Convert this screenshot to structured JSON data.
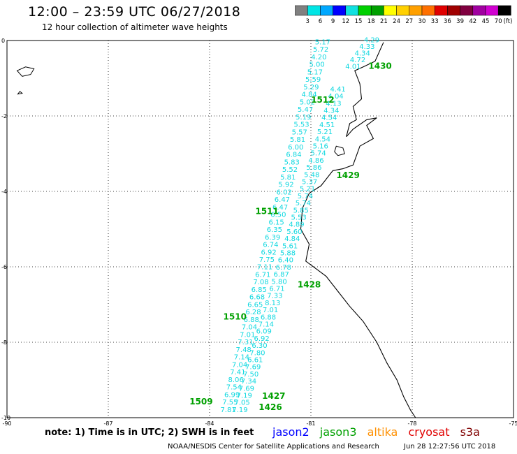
{
  "header": {
    "title": "12:00 – 23:59 UTC 06/27/2018",
    "subtitle": "12 hour collection of altimeter wave heights"
  },
  "colorbar": {
    "labels": [
      "3",
      "6",
      "9",
      "12",
      "15",
      "18",
      "21",
      "24",
      "27",
      "30",
      "33",
      "36",
      "39",
      "42",
      "45",
      "70"
    ],
    "unit": "(ft)",
    "colors": [
      "#808080",
      "#00e5e5",
      "#00a8ff",
      "#0000ff",
      "#10e0e0",
      "#00d000",
      "#00a000",
      "#ffff00",
      "#ffd000",
      "#ffa000",
      "#ff7000",
      "#e00000",
      "#a00000",
      "#800040",
      "#a000a0",
      "#d000d0",
      "#000000"
    ]
  },
  "chart_data": {
    "type": "scatter",
    "xlim": [
      -90,
      -75
    ],
    "ylim": [
      -10,
      0
    ],
    "x_ticks": [
      "-90",
      "-87",
      "-84",
      "-81",
      "-78",
      "-75"
    ],
    "y_ticks": [
      "0",
      "-2",
      "-4",
      "-6",
      "-8",
      "-10"
    ],
    "track_a": {
      "lon_start": -83.45,
      "lon_end": -80.65,
      "lat_start": -9.85,
      "lat_end": -0.1,
      "values": [
        "7.81",
        "7.55",
        "6.99",
        "7.54",
        "8.06",
        "7.41",
        "7.04",
        "7.14",
        "7.48",
        "7.31",
        "7.01",
        "7.04",
        "6.88",
        "6.28",
        "6.65",
        "6.68",
        "6.85",
        "7.08",
        "6.71",
        "7.11",
        "7.75",
        "6.92",
        "6.74",
        "6.39",
        "6.35",
        "6.15",
        "6.50",
        "6.47",
        "6.47",
        "6.02",
        "5.92",
        "5.81",
        "5.52",
        "5.83",
        "6.84",
        "6.00",
        "5.81",
        "5.57",
        "5.53",
        "5.19",
        "5.47",
        "5.02",
        "4.84",
        "5.29",
        "5.59",
        "5.17",
        "5.00",
        "4.20",
        "5.72",
        "5.17"
      ]
    },
    "track_b": {
      "lon_start": -83.1,
      "lon_end": -80.2,
      "lat_start": -9.85,
      "lat_end": -1.35,
      "values": [
        "7.19",
        "7.05",
        "7.19",
        "7.69",
        "7.34",
        "7.50",
        "7.69",
        "6.61",
        "7.80",
        "6.30",
        "6.92",
        "6.09",
        "7.14",
        "6.88",
        "7.01",
        "8.13",
        "7.33",
        "6.71",
        "5.80",
        "6.87",
        "6.78",
        "6.40",
        "5.88",
        "5.61",
        "4.84",
        "5.60",
        "4.89",
        "5.53",
        "5.85",
        "5.74",
        "5.74",
        "5.21",
        "5.37",
        "5.48",
        "5.86",
        "4.86",
        "5.74",
        "5.16",
        "4.54",
        "5.21",
        "4.51",
        "4.54",
        "4.34",
        "4.13",
        "4.04",
        "4.41"
      ]
    },
    "track_c": {
      "lon_start": -79.75,
      "lon_end": -79.2,
      "lat_start": -0.75,
      "lat_end": -0.05,
      "values": [
        "4.01",
        "4.72",
        "4.34",
        "4.33",
        "4.29"
      ]
    },
    "time_labels": [
      {
        "text": "1430",
        "lon": -78.95,
        "lat": -0.75,
        "series": "jason3"
      },
      {
        "text": "1512",
        "lon": -80.65,
        "lat": -1.65,
        "series": "jason3"
      },
      {
        "text": "1429",
        "lon": -79.9,
        "lat": -3.65,
        "series": "jason3"
      },
      {
        "text": "1511",
        "lon": -82.3,
        "lat": -4.6,
        "series": "jason3"
      },
      {
        "text": "1428",
        "lon": -81.05,
        "lat": -6.55,
        "series": "jason3"
      },
      {
        "text": "1510",
        "lon": -83.25,
        "lat": -7.4,
        "series": "jason3"
      },
      {
        "text": "1427",
        "lon": -82.1,
        "lat": -9.5,
        "series": "jason3"
      },
      {
        "text": "1509",
        "lon": -84.25,
        "lat": -9.65,
        "series": "jason3"
      },
      {
        "text": "1426",
        "lon": -82.2,
        "lat": -9.8,
        "series": "jason3"
      }
    ],
    "coast": [
      [
        -78.85,
        -0.05
      ],
      [
        -79.1,
        -0.55
      ],
      [
        -79.45,
        -0.7
      ],
      [
        -79.7,
        -0.8
      ],
      [
        -79.55,
        -1.15
      ],
      [
        -79.5,
        -1.55
      ],
      [
        -79.75,
        -1.75
      ],
      [
        -79.65,
        -2.1
      ],
      [
        -79.85,
        -2.2
      ],
      [
        -79.95,
        -2.55
      ],
      [
        -79.75,
        -2.35
      ],
      [
        -79.35,
        -2.1
      ],
      [
        -79.05,
        -2.05
      ],
      [
        -79.35,
        -2.25
      ],
      [
        -79.15,
        -2.6
      ],
      [
        -79.55,
        -2.8
      ],
      [
        -79.75,
        -3.3
      ],
      [
        -80.05,
        -3.4
      ],
      [
        -80.35,
        -3.45
      ],
      [
        -80.7,
        -3.85
      ],
      [
        -81.05,
        -4.05
      ],
      [
        -81.25,
        -4.45
      ],
      [
        -81.3,
        -5.0
      ],
      [
        -81.05,
        -5.4
      ],
      [
        -81.15,
        -5.85
      ],
      [
        -80.85,
        -6.05
      ],
      [
        -80.55,
        -6.25
      ],
      [
        -80.2,
        -6.65
      ],
      [
        -79.85,
        -7.05
      ],
      [
        -79.45,
        -7.45
      ],
      [
        -79.05,
        -8.0
      ],
      [
        -78.75,
        -8.55
      ],
      [
        -78.45,
        -9.0
      ],
      [
        -78.25,
        -9.45
      ],
      [
        -78.05,
        -9.8
      ],
      [
        -77.9,
        -10.0
      ]
    ],
    "islands": [
      [
        [
          -89.7,
          -0.8
        ],
        [
          -89.45,
          -0.7
        ],
        [
          -89.2,
          -0.75
        ],
        [
          -89.3,
          -0.9
        ],
        [
          -89.55,
          -0.95
        ],
        [
          -89.7,
          -0.8
        ]
      ],
      [
        [
          -89.62,
          -1.35
        ],
        [
          -89.55,
          -1.4
        ],
        [
          -89.68,
          -1.42
        ],
        [
          -89.62,
          -1.35
        ]
      ],
      [
        [
          -80.25,
          -2.8
        ],
        [
          -80.05,
          -2.85
        ],
        [
          -80.0,
          -3.0
        ],
        [
          -80.2,
          -3.05
        ],
        [
          -80.3,
          -2.95
        ],
        [
          -80.25,
          -2.8
        ]
      ]
    ]
  },
  "legend": {
    "note": "note: 1) Time is in UTC; 2) SWH is in feet",
    "satellites": [
      {
        "name": "jason2",
        "color": "#0000ff"
      },
      {
        "name": "jason3",
        "color": "#00a000"
      },
      {
        "name": "altika",
        "color": "#ff9000"
      },
      {
        "name": "cryosat",
        "color": "#e00000"
      },
      {
        "name": "s3a",
        "color": "#800000"
      }
    ]
  },
  "footer": {
    "credit": "NOAA/NESDIS Center for Satellite Applications and Research",
    "timestamp": "Jun 28 12:27:56 UTC 2018"
  }
}
